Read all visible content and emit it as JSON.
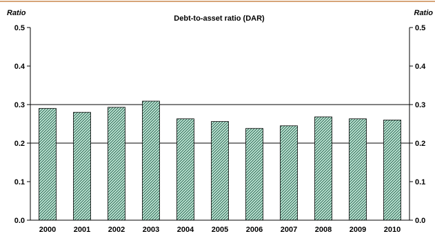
{
  "chart_data": {
    "type": "bar",
    "title": "Debt-to-asset ratio (DAR)",
    "ylabel_left": "Ratio",
    "ylabel_right": "Ratio",
    "xlabel": "",
    "categories": [
      "2000",
      "2001",
      "2002",
      "2003",
      "2004",
      "2005",
      "2006",
      "2007",
      "2008",
      "2009",
      "2010"
    ],
    "values": [
      0.29,
      0.28,
      0.293,
      0.309,
      0.263,
      0.256,
      0.238,
      0.245,
      0.268,
      0.263,
      0.26
    ],
    "ylim": [
      0,
      0.5
    ],
    "yticks": [
      "0.0",
      "0.1",
      "0.2",
      "0.3",
      "0.4",
      "0.5"
    ],
    "reference_lines": [
      0.2,
      0.3
    ],
    "grid": false,
    "legend": "none",
    "colors": {
      "bar_fill": "#bfe6d6",
      "bar_hatch": "#1f5a45",
      "bar_edge": "#000000",
      "top_rule": "#c8864a"
    }
  }
}
